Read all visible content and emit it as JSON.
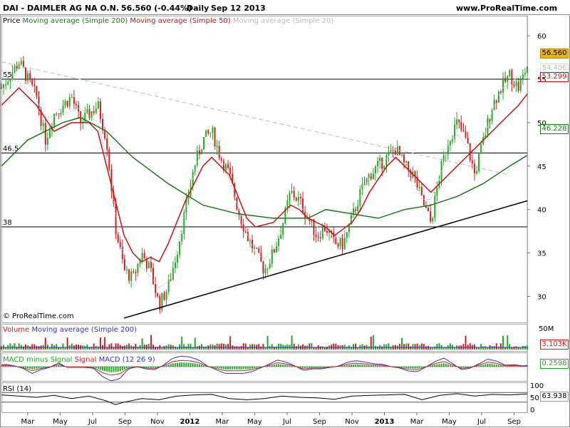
{
  "header": {
    "symbol": "DAI - DAIMLER AG NA O.N.",
    "quote": "56.560 (-0.44%)",
    "period": "Daily",
    "date": "Sep 12 2013",
    "site": "www.ProRealTime.com",
    "copyright": "© ProRealTime.com"
  },
  "price_legend": {
    "price": "Price",
    "ma200": "Moving average (Simple 200)",
    "ma50": "Moving average (Simple 50)",
    "ma20": "Moving average (Simple 20)"
  },
  "volume_legend": {
    "volume": "Volume",
    "ma": "Moving average (Simple 200)"
  },
  "macd_legend": {
    "hist": "MACD minus Signal",
    "signal": "Signal",
    "macd": "MACD (12 26 9)"
  },
  "rsi_legend": {
    "rsi": "RSI (14)"
  },
  "colors": {
    "ma200": "#1a7a1a",
    "ma50": "#cc1111",
    "ma20": "#bbbbbb",
    "up": "#22aa22",
    "down": "#cc2222",
    "macd": "#3333bb",
    "signal": "#cc2222",
    "hist": "#22aa22",
    "last": "#f0b400"
  },
  "chart_data": {
    "type": "candlestick",
    "x_labels": [
      "Mar",
      "May",
      "Jul",
      "Sep",
      "Nov",
      "2012",
      "Mar",
      "May",
      "Jul",
      "Sep",
      "Nov",
      "2013",
      "Mar",
      "May",
      "Jul",
      "Sep"
    ],
    "price_axis": {
      "ticks": [
        "60",
        "55",
        "50",
        "45",
        "40",
        "35",
        "30"
      ],
      "ylim": [
        27,
        61
      ]
    },
    "horizontal_levels": [
      "55",
      "46.5",
      "38"
    ],
    "tags": {
      "last": "56.560",
      "ma20": "54.406",
      "ma50": "53.299",
      "ma200": "46.228"
    },
    "price_path": [
      [
        0,
        54
      ],
      [
        2,
        57
      ],
      [
        4,
        53
      ],
      [
        5,
        48
      ],
      [
        6,
        51
      ],
      [
        8,
        53
      ],
      [
        9,
        50
      ],
      [
        11,
        52
      ],
      [
        12,
        48
      ],
      [
        13,
        38
      ],
      [
        14,
        33
      ],
      [
        15,
        32
      ],
      [
        16,
        35
      ],
      [
        17,
        33
      ],
      [
        18,
        29
      ],
      [
        19,
        31
      ],
      [
        20,
        35
      ],
      [
        21,
        40
      ],
      [
        22,
        45
      ],
      [
        23,
        48
      ],
      [
        24,
        49
      ],
      [
        25,
        46
      ],
      [
        26,
        44
      ],
      [
        27,
        40
      ],
      [
        28,
        37
      ],
      [
        29,
        35
      ],
      [
        30,
        33
      ],
      [
        31,
        35
      ],
      [
        32,
        38
      ],
      [
        33,
        42
      ],
      [
        34,
        41
      ],
      [
        35,
        39
      ],
      [
        36,
        37
      ],
      [
        37,
        38
      ],
      [
        38,
        36
      ],
      [
        39,
        36
      ],
      [
        40,
        39
      ],
      [
        41,
        42
      ],
      [
        42,
        44
      ],
      [
        43,
        45
      ],
      [
        44,
        46
      ],
      [
        45,
        47
      ],
      [
        46,
        45
      ],
      [
        47,
        44
      ],
      [
        48,
        41
      ],
      [
        49,
        38.5
      ],
      [
        50,
        44
      ],
      [
        51,
        48
      ],
      [
        52,
        50
      ],
      [
        53,
        48
      ],
      [
        54,
        44
      ],
      [
        55,
        48
      ],
      [
        56,
        52
      ],
      [
        57,
        54
      ],
      [
        58,
        55.5
      ],
      [
        59,
        54
      ],
      [
        60,
        56.56
      ]
    ],
    "ma200_path": [
      [
        0,
        45
      ],
      [
        3,
        48
      ],
      [
        7,
        50
      ],
      [
        9,
        50.6
      ],
      [
        12,
        49
      ],
      [
        15,
        46
      ],
      [
        19,
        43
      ],
      [
        23,
        40.5
      ],
      [
        27,
        39.5
      ],
      [
        31,
        39
      ],
      [
        35,
        39
      ],
      [
        37,
        40
      ],
      [
        40,
        39.5
      ],
      [
        43,
        39
      ],
      [
        46,
        40
      ],
      [
        49,
        40.5
      ],
      [
        52,
        41.5
      ],
      [
        55,
        43
      ],
      [
        58,
        45
      ],
      [
        60,
        46.23
      ]
    ],
    "ma50_path": [
      [
        0,
        52
      ],
      [
        2,
        54
      ],
      [
        4,
        52
      ],
      [
        6,
        49
      ],
      [
        8,
        50
      ],
      [
        10,
        50
      ],
      [
        11,
        49
      ],
      [
        12,
        45
      ],
      [
        13,
        41
      ],
      [
        14,
        37
      ],
      [
        15,
        35
      ],
      [
        16,
        34
      ],
      [
        17,
        34.5
      ],
      [
        18,
        34
      ],
      [
        19,
        36
      ],
      [
        21,
        41
      ],
      [
        23,
        45
      ],
      [
        24,
        46
      ],
      [
        26,
        44
      ],
      [
        27,
        41.5
      ],
      [
        28,
        39
      ],
      [
        29,
        38
      ],
      [
        31,
        38.5
      ],
      [
        33,
        40.5
      ],
      [
        34,
        40
      ],
      [
        35,
        39
      ],
      [
        37,
        38
      ],
      [
        38,
        37
      ],
      [
        40,
        38.5
      ],
      [
        41,
        40
      ],
      [
        42,
        42
      ],
      [
        43,
        43.5
      ],
      [
        44,
        45
      ],
      [
        45,
        46
      ],
      [
        46,
        45
      ],
      [
        47,
        44
      ],
      [
        48,
        43
      ],
      [
        49,
        42
      ],
      [
        51,
        44
      ],
      [
        53,
        46
      ],
      [
        55,
        48
      ],
      [
        57,
        50
      ],
      [
        59,
        52
      ],
      [
        60,
        53.3
      ]
    ],
    "trendline": [
      [
        14,
        27.5
      ],
      [
        60,
        41
      ]
    ],
    "volume": {
      "axis_label": "50M",
      "value": "3,103K"
    },
    "macd": {
      "value": "0.2598"
    },
    "rsi": {
      "ticks": [
        "100",
        "50",
        "0"
      ],
      "value": "63.938",
      "path": [
        [
          0,
          60
        ],
        [
          2,
          55
        ],
        [
          4,
          50
        ],
        [
          6,
          58
        ],
        [
          8,
          45
        ],
        [
          10,
          55
        ],
        [
          12,
          35
        ],
        [
          13,
          20
        ],
        [
          14,
          30
        ],
        [
          16,
          45
        ],
        [
          18,
          40
        ],
        [
          20,
          55
        ],
        [
          22,
          60
        ],
        [
          24,
          62
        ],
        [
          26,
          45
        ],
        [
          28,
          40
        ],
        [
          30,
          45
        ],
        [
          32,
          55
        ],
        [
          34,
          50
        ],
        [
          36,
          48
        ],
        [
          38,
          42
        ],
        [
          40,
          55
        ],
        [
          42,
          58
        ],
        [
          44,
          60
        ],
        [
          46,
          62
        ],
        [
          48,
          40
        ],
        [
          50,
          58
        ],
        [
          52,
          65
        ],
        [
          54,
          55
        ],
        [
          56,
          62
        ],
        [
          58,
          60
        ],
        [
          60,
          63.9
        ]
      ]
    }
  }
}
